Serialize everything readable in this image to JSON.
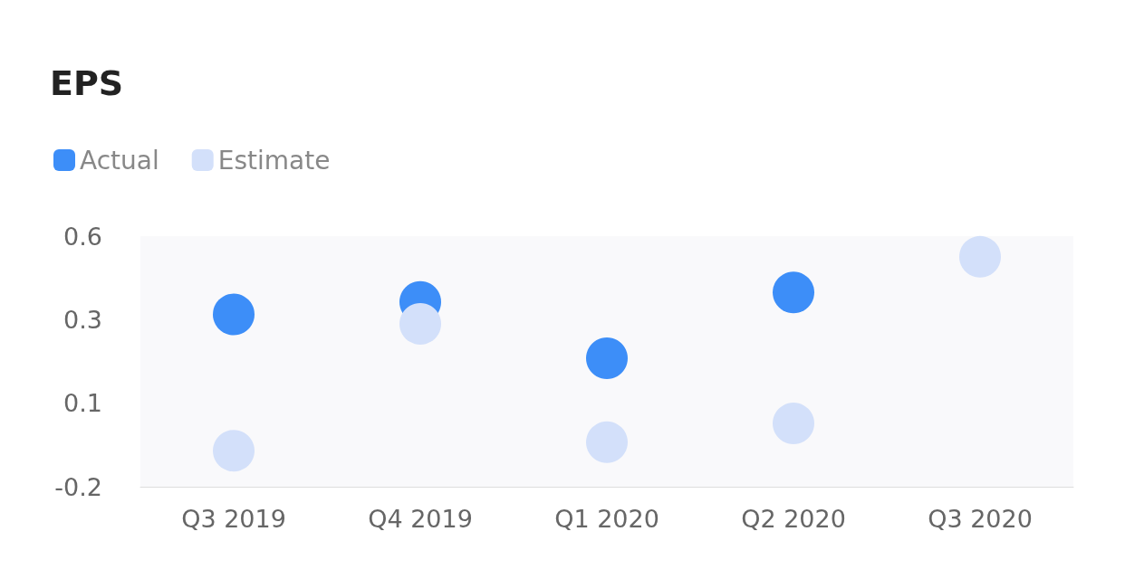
{
  "chart_data": {
    "type": "scatter",
    "title": "EPS",
    "categories": [
      "Q3 2019",
      "Q4 2019",
      "Q1 2020",
      "Q2 2020",
      "Q3 2020"
    ],
    "series": [
      {
        "name": "Actual",
        "color": "#3d8ef8",
        "values": [
          0.35,
          0.39,
          0.21,
          0.42,
          null
        ]
      },
      {
        "name": "Estimate",
        "color": "#d3e0fa",
        "values": [
          -0.085,
          0.32,
          -0.058,
          0.002,
          0.534
        ]
      }
    ],
    "ylim": [
      -0.2,
      0.6
    ],
    "yticks": [
      {
        "value": -0.2,
        "label": "-0.2"
      },
      {
        "value": 0.0667,
        "label": "0.1"
      },
      {
        "value": 0.3333,
        "label": "0.3"
      },
      {
        "value": 0.6,
        "label": "0.6"
      }
    ],
    "grid": false,
    "legend": "top left",
    "marker": "circle"
  }
}
